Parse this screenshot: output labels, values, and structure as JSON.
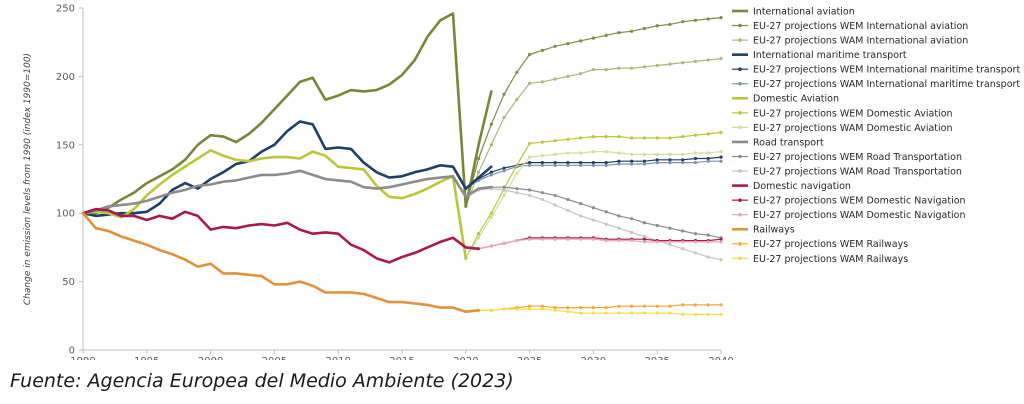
{
  "source_note": "Fuente: Agencia Europea del Medio Ambiente (2023)",
  "chart_data": {
    "type": "line",
    "title": "",
    "xlabel": "",
    "ylabel": "Change in emission levels from 1990 (index 1990=100)",
    "xlim": [
      1990,
      2040
    ],
    "ylim": [
      0,
      250
    ],
    "xticks": [
      1990,
      1995,
      2000,
      2005,
      2010,
      2015,
      2020,
      2025,
      2030,
      2035,
      2040
    ],
    "yticks": [
      0,
      50,
      100,
      150,
      200,
      250
    ],
    "grid": false,
    "legend_position": "right",
    "series": [
      {
        "name": "International aviation",
        "color": "#76873a",
        "style": "solid",
        "width": 2.6,
        "x": [
          1990,
          1991,
          1992,
          1993,
          1994,
          1995,
          1996,
          1997,
          1998,
          1999,
          2000,
          2001,
          2002,
          2003,
          2004,
          2005,
          2006,
          2007,
          2008,
          2009,
          2010,
          2011,
          2012,
          2013,
          2014,
          2015,
          2016,
          2017,
          2018,
          2019,
          2020,
          2021,
          2022
        ],
        "y": [
          100,
          100,
          104,
          110,
          115,
          122,
          127,
          132,
          139,
          150,
          157,
          156,
          152,
          158,
          166,
          176,
          186,
          196,
          199,
          183,
          186,
          190,
          189,
          190,
          194,
          201,
          212,
          229,
          241,
          246,
          105,
          150,
          189
        ]
      },
      {
        "name": "EU-27 projections WEM International aviation",
        "color": "#7a8c47",
        "style": "marker",
        "width": 1.2,
        "x": [
          2020,
          2021,
          2022,
          2023,
          2024,
          2025,
          2026,
          2027,
          2028,
          2029,
          2030,
          2031,
          2032,
          2033,
          2034,
          2035,
          2036,
          2037,
          2038,
          2039,
          2040
        ],
        "y": [
          105,
          140,
          165,
          187,
          203,
          216,
          219,
          222,
          224,
          226,
          228,
          230,
          232,
          233,
          235,
          237,
          238,
          240,
          241,
          242,
          243
        ]
      },
      {
        "name": "EU-27 projections WAM International aviation",
        "color": "#a9b779",
        "style": "marker",
        "width": 1.2,
        "x": [
          2020,
          2021,
          2022,
          2023,
          2024,
          2025,
          2026,
          2027,
          2028,
          2029,
          2030,
          2031,
          2032,
          2033,
          2034,
          2035,
          2036,
          2037,
          2038,
          2039,
          2040
        ],
        "y": [
          105,
          130,
          150,
          170,
          183,
          195,
          196,
          198,
          200,
          202,
          205,
          205,
          206,
          206,
          207,
          208,
          209,
          210,
          211,
          212,
          213
        ]
      },
      {
        "name": "International maritime transport",
        "color": "#1f3f66",
        "style": "solid",
        "width": 2.6,
        "x": [
          1990,
          1991,
          1992,
          1993,
          1994,
          1995,
          1996,
          1997,
          1998,
          1999,
          2000,
          2001,
          2002,
          2003,
          2004,
          2005,
          2006,
          2007,
          2008,
          2009,
          2010,
          2011,
          2012,
          2013,
          2014,
          2015,
          2016,
          2017,
          2018,
          2019,
          2020,
          2021,
          2022
        ],
        "y": [
          100,
          98,
          99,
          100,
          100,
          101,
          107,
          117,
          122,
          118,
          125,
          130,
          136,
          138,
          145,
          150,
          160,
          167,
          165,
          147,
          148,
          147,
          137,
          130,
          126,
          127,
          130,
          132,
          135,
          134,
          118,
          126,
          134
        ]
      },
      {
        "name": "EU-27 projections WEM International maritime transport",
        "color": "#1f3f66",
        "style": "marker",
        "width": 1.2,
        "x": [
          2020,
          2021,
          2022,
          2023,
          2024,
          2025,
          2026,
          2027,
          2028,
          2029,
          2030,
          2031,
          2032,
          2033,
          2034,
          2035,
          2036,
          2037,
          2038,
          2039,
          2040
        ],
        "y": [
          118,
          125,
          130,
          133,
          135,
          137,
          137,
          137,
          137,
          137,
          137,
          137,
          138,
          138,
          138,
          139,
          139,
          139,
          140,
          140,
          141
        ]
      },
      {
        "name": "EU-27 projections WAM International maritime transport",
        "color": "#7f93ad",
        "style": "marker",
        "width": 1.2,
        "x": [
          2020,
          2021,
          2022,
          2023,
          2024,
          2025,
          2026,
          2027,
          2028,
          2029,
          2030,
          2031,
          2032,
          2033,
          2034,
          2035,
          2036,
          2037,
          2038,
          2039,
          2040
        ],
        "y": [
          118,
          124,
          128,
          131,
          134,
          135,
          135,
          135,
          135,
          135,
          135,
          135,
          136,
          136,
          136,
          137,
          137,
          137,
          137,
          138,
          138
        ]
      },
      {
        "name": "Domestic Aviation",
        "color": "#b9c63a",
        "style": "solid",
        "width": 2.6,
        "x": [
          1990,
          1991,
          1992,
          1993,
          1994,
          1995,
          1996,
          1997,
          1998,
          1999,
          2000,
          2001,
          2002,
          2003,
          2004,
          2005,
          2006,
          2007,
          2008,
          2009,
          2010,
          2011,
          2012,
          2013,
          2014,
          2015,
          2016,
          2017,
          2018,
          2019,
          2020
        ],
        "y": [
          100,
          101,
          100,
          97,
          103,
          113,
          121,
          128,
          134,
          140,
          146,
          142,
          139,
          138,
          140,
          141,
          141,
          140,
          145,
          142,
          134,
          133,
          132,
          120,
          112,
          111,
          114,
          118,
          123,
          127,
          67
        ]
      },
      {
        "name": "EU-27 projections WEM Domestic Aviation",
        "color": "#b9c63a",
        "style": "marker",
        "width": 1.2,
        "x": [
          2020,
          2021,
          2022,
          2023,
          2024,
          2025,
          2026,
          2027,
          2028,
          2029,
          2030,
          2031,
          2032,
          2033,
          2034,
          2035,
          2036,
          2037,
          2038,
          2039,
          2040
        ],
        "y": [
          67,
          85,
          100,
          118,
          135,
          151,
          152,
          153,
          154,
          155,
          156,
          156,
          156,
          155,
          155,
          155,
          155,
          156,
          157,
          158,
          159
        ]
      },
      {
        "name": "EU-27 projections WAM Domestic Aviation",
        "color": "#d5dc9a",
        "style": "marker",
        "width": 1.2,
        "x": [
          2020,
          2021,
          2022,
          2023,
          2024,
          2025,
          2026,
          2027,
          2028,
          2029,
          2030,
          2031,
          2032,
          2033,
          2034,
          2035,
          2036,
          2037,
          2038,
          2039,
          2040
        ],
        "y": [
          67,
          82,
          97,
          113,
          129,
          141,
          142,
          143,
          144,
          144,
          145,
          145,
          144,
          143,
          143,
          143,
          143,
          143,
          144,
          144,
          145
        ]
      },
      {
        "name": "Road transport",
        "color": "#8c8c8c",
        "style": "solid",
        "width": 2.6,
        "x": [
          1990,
          1991,
          1992,
          1993,
          1994,
          1995,
          1996,
          1997,
          1998,
          1999,
          2000,
          2001,
          2002,
          2003,
          2004,
          2005,
          2006,
          2007,
          2008,
          2009,
          2010,
          2011,
          2012,
          2013,
          2014,
          2015,
          2016,
          2017,
          2018,
          2019,
          2020,
          2021,
          2022
        ],
        "y": [
          100,
          102,
          105,
          106,
          107,
          109,
          112,
          115,
          117,
          120,
          121,
          123,
          124,
          126,
          128,
          128,
          129,
          131,
          128,
          125,
          124,
          123,
          119,
          118,
          119,
          121,
          123,
          125,
          126,
          127,
          112,
          118,
          119
        ]
      },
      {
        "name": "EU-27 projections WEM Road Transportation",
        "color": "#8c8c8c",
        "style": "marker",
        "width": 1.2,
        "x": [
          2020,
          2021,
          2022,
          2023,
          2024,
          2025,
          2026,
          2027,
          2028,
          2029,
          2030,
          2031,
          2032,
          2033,
          2034,
          2035,
          2036,
          2037,
          2038,
          2039,
          2040
        ],
        "y": [
          112,
          117,
          119,
          119,
          118,
          117,
          115,
          113,
          110,
          107,
          104,
          101,
          98,
          96,
          93,
          91,
          89,
          87,
          85,
          84,
          82
        ]
      },
      {
        "name": "EU-27 projections WAM Road Transportation",
        "color": "#c4c4c4",
        "style": "marker",
        "width": 1.2,
        "x": [
          2020,
          2021,
          2022,
          2023,
          2024,
          2025,
          2026,
          2027,
          2028,
          2029,
          2030,
          2031,
          2032,
          2033,
          2034,
          2035,
          2036,
          2037,
          2038,
          2039,
          2040
        ],
        "y": [
          112,
          117,
          118,
          117,
          115,
          113,
          110,
          106,
          102,
          98,
          95,
          92,
          89,
          86,
          83,
          80,
          77,
          74,
          71,
          68,
          66
        ]
      },
      {
        "name": "Domestic navigation",
        "color": "#a51b4e",
        "style": "solid",
        "width": 2.6,
        "x": [
          1990,
          1991,
          1992,
          1993,
          1994,
          1995,
          1996,
          1997,
          1998,
          1999,
          2000,
          2001,
          2002,
          2003,
          2004,
          2005,
          2006,
          2007,
          2008,
          2009,
          2010,
          2011,
          2012,
          2013,
          2014,
          2015,
          2016,
          2017,
          2018,
          2019,
          2020,
          2021
        ],
        "y": [
          100,
          103,
          102,
          98,
          98,
          95,
          98,
          96,
          101,
          98,
          88,
          90,
          89,
          91,
          92,
          91,
          93,
          88,
          85,
          86,
          85,
          77,
          73,
          67,
          64,
          68,
          71,
          75,
          79,
          82,
          75,
          74
        ]
      },
      {
        "name": "EU-27 projections WEM Domestic Navigation",
        "color": "#a51b4e",
        "style": "marker",
        "width": 1.2,
        "x": [
          2021,
          2022,
          2023,
          2024,
          2025,
          2026,
          2027,
          2028,
          2029,
          2030,
          2031,
          2032,
          2033,
          2034,
          2035,
          2036,
          2037,
          2038,
          2039,
          2040
        ],
        "y": [
          74,
          76,
          78,
          80,
          82,
          82,
          82,
          82,
          82,
          82,
          81,
          81,
          81,
          81,
          80,
          80,
          80,
          80,
          80,
          81
        ]
      },
      {
        "name": "EU-27 projections WAM Domestic Navigation",
        "color": "#e8a6bb",
        "style": "marker",
        "width": 1.2,
        "x": [
          2021,
          2022,
          2023,
          2024,
          2025,
          2026,
          2027,
          2028,
          2029,
          2030,
          2031,
          2032,
          2033,
          2034,
          2035,
          2036,
          2037,
          2038,
          2039,
          2040
        ],
        "y": [
          74,
          76,
          78,
          80,
          81,
          81,
          81,
          81,
          81,
          81,
          80,
          80,
          80,
          79,
          79,
          79,
          79,
          79,
          79,
          79
        ]
      },
      {
        "name": "Railways",
        "color": "#e0913a",
        "style": "solid",
        "width": 2.6,
        "x": [
          1990,
          1991,
          1992,
          1993,
          1994,
          1995,
          1996,
          1997,
          1998,
          1999,
          2000,
          2001,
          2002,
          2003,
          2004,
          2005,
          2006,
          2007,
          2008,
          2009,
          2010,
          2011,
          2012,
          2013,
          2014,
          2015,
          2016,
          2017,
          2018,
          2019,
          2020,
          2021
        ],
        "y": [
          100,
          89,
          87,
          83,
          80,
          77,
          73,
          70,
          66,
          61,
          63,
          56,
          56,
          55,
          54,
          48,
          48,
          50,
          47,
          42,
          42,
          42,
          41,
          38,
          35,
          35,
          34,
          33,
          31,
          31,
          28,
          29
        ]
      },
      {
        "name": "EU-27 projections WEM Railways",
        "color": "#f2a93b",
        "style": "marker",
        "width": 1.2,
        "x": [
          2021,
          2022,
          2023,
          2024,
          2025,
          2026,
          2027,
          2028,
          2029,
          2030,
          2031,
          2032,
          2033,
          2034,
          2035,
          2036,
          2037,
          2038,
          2039,
          2040
        ],
        "y": [
          29,
          29,
          30,
          31,
          32,
          32,
          31,
          31,
          31,
          31,
          31,
          32,
          32,
          32,
          32,
          32,
          33,
          33,
          33,
          33
        ]
      },
      {
        "name": "EU-27 projections WAM Railways",
        "color": "#f0e044",
        "style": "marker",
        "width": 1.2,
        "x": [
          2021,
          2022,
          2023,
          2024,
          2025,
          2026,
          2027,
          2028,
          2029,
          2030,
          2031,
          2032,
          2033,
          2034,
          2035,
          2036,
          2037,
          2038,
          2039,
          2040
        ],
        "y": [
          29,
          29,
          30,
          30,
          30,
          30,
          29,
          28,
          27,
          27,
          27,
          27,
          27,
          27,
          27,
          27,
          26,
          26,
          26,
          26
        ]
      }
    ]
  }
}
